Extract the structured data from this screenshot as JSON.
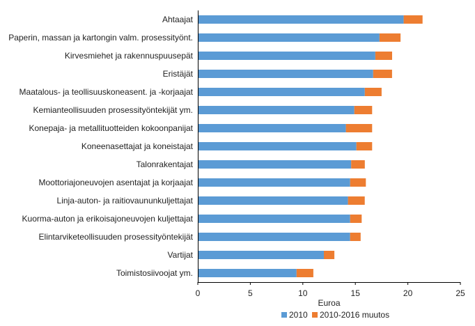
{
  "chart_data": {
    "type": "bar",
    "orientation": "horizontal",
    "stacked": true,
    "categories": [
      "Ahtaajat",
      "Paperin, massan ja kartongin valm. prosessityönt.",
      "Kirvesmiehet ja rakennuspuusepät",
      "Eristäjät",
      "Maatalous- ja teollisuuskoneasent. ja -korjaajat",
      "Kemianteollisuuden prosessityöntekijät ym.",
      "Konepaja- ja metallituotteiden kokoonpanijat",
      "Koneenasettajat ja koneistajat",
      "Talonrakentajat",
      "Moottoriajoneuvojen asentajat ja korjaajat",
      "Linja-auton- ja raitiovaununkuljettajat",
      "Kuorma-auton ja erikoisajoneuvojen kuljettajat",
      "Elintarviketeollisuuden prosessityöntekijät",
      "Vartijat",
      "Toimistosiivoojat ym."
    ],
    "series": [
      {
        "name": "2010",
        "color": "#5b9bd5",
        "values": [
          19.6,
          17.3,
          16.9,
          16.7,
          15.9,
          14.9,
          14.1,
          15.1,
          14.6,
          14.5,
          14.3,
          14.5,
          14.5,
          12.0,
          9.4
        ]
      },
      {
        "name": "2010-2016 muutos",
        "color": "#ed7d31",
        "values": [
          1.8,
          2.0,
          1.6,
          1.8,
          1.6,
          1.7,
          2.5,
          1.5,
          1.3,
          1.5,
          1.6,
          1.1,
          1.0,
          1.0,
          1.6
        ]
      }
    ],
    "xlabel": "Euroa",
    "xlim": [
      0,
      25
    ],
    "xticks": [
      0,
      5,
      10,
      15,
      20,
      25
    ],
    "grid": false,
    "legend_position": "bottom"
  }
}
